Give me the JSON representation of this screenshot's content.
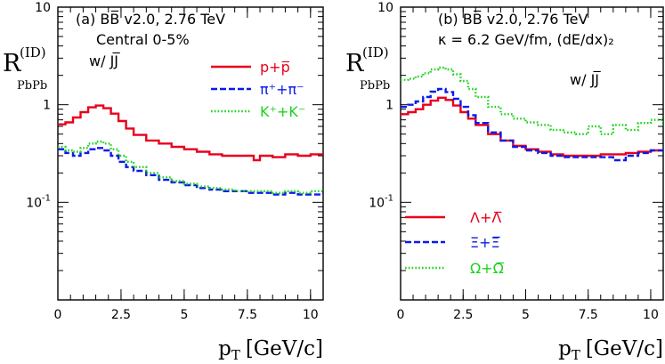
{
  "chart_data": [
    {
      "type": "line",
      "panel_label": "(a)",
      "model_line": "BB̅ v2.0, 2.76 TeV",
      "condition_lines": [
        "Central 0-5%",
        "w/ JJ̅"
      ],
      "xlabel": "p",
      "xlabel_sub": "T",
      "xlabel_unit": "[GeV/c]",
      "ylabel": "R",
      "ylabel_sup": "(ID)",
      "ylabel_sub": "PbPb",
      "xlim": [
        0,
        10.5
      ],
      "ylim": [
        0.01,
        10
      ],
      "yscale": "log",
      "x_ticks": [
        "0",
        "2.5",
        "5",
        "7.5",
        "10"
      ],
      "x_tick_values": [
        0,
        2.5,
        5,
        7.5,
        10
      ],
      "y_ticks": [
        {
          "value": 10,
          "base": "10",
          "exp": ""
        },
        {
          "value": 1,
          "base": "1",
          "exp": ""
        },
        {
          "value": 0.1,
          "base": "10",
          "exp": "-1"
        }
      ],
      "legend_position": "right",
      "series": [
        {
          "name": "p+p̅",
          "color": "#e8001c",
          "style": "solid",
          "x": [
            0,
            0.3,
            0.6,
            0.9,
            1.2,
            1.5,
            1.8,
            2.1,
            2.4,
            2.7,
            3.0,
            3.5,
            4.0,
            4.5,
            5.0,
            5.5,
            6.0,
            6.5,
            7.0,
            7.5,
            7.75,
            8.0,
            8.5,
            9.0,
            9.5,
            10.0,
            10.5
          ],
          "y": [
            0.63,
            0.66,
            0.74,
            0.84,
            0.94,
            0.98,
            0.92,
            0.81,
            0.68,
            0.57,
            0.49,
            0.43,
            0.4,
            0.37,
            0.35,
            0.33,
            0.31,
            0.3,
            0.3,
            0.3,
            0.27,
            0.3,
            0.29,
            0.31,
            0.3,
            0.31,
            0.31
          ]
        },
        {
          "name": "π⁺+π⁻",
          "color": "#0b1bea",
          "style": "dashed",
          "x": [
            0,
            0.3,
            0.6,
            0.9,
            1.2,
            1.5,
            1.8,
            2.1,
            2.4,
            2.7,
            3.0,
            3.5,
            4.0,
            4.5,
            5.0,
            5.5,
            6.0,
            6.5,
            7.0,
            7.5,
            8.0,
            8.5,
            9.0,
            9.5,
            10.0,
            10.5
          ],
          "y": [
            0.35,
            0.32,
            0.3,
            0.32,
            0.35,
            0.36,
            0.34,
            0.3,
            0.26,
            0.23,
            0.21,
            0.19,
            0.17,
            0.16,
            0.15,
            0.14,
            0.135,
            0.13,
            0.13,
            0.125,
            0.125,
            0.12,
            0.125,
            0.12,
            0.12,
            0.125
          ]
        },
        {
          "name": "K⁺+K⁻",
          "color": "#1dd21d",
          "style": "dotted",
          "x": [
            0,
            0.3,
            0.6,
            0.9,
            1.2,
            1.5,
            1.8,
            2.1,
            2.4,
            2.7,
            3.0,
            3.5,
            4.0,
            4.5,
            5.0,
            5.5,
            6.0,
            6.5,
            7.0,
            7.5,
            8.0,
            8.5,
            9.0,
            9.5,
            10.0,
            10.5
          ],
          "y": [
            0.37,
            0.34,
            0.33,
            0.36,
            0.4,
            0.42,
            0.4,
            0.35,
            0.3,
            0.26,
            0.23,
            0.2,
            0.18,
            0.165,
            0.155,
            0.145,
            0.14,
            0.135,
            0.13,
            0.13,
            0.13,
            0.125,
            0.13,
            0.125,
            0.13,
            0.13
          ]
        }
      ]
    },
    {
      "type": "line",
      "panel_label": "(b)",
      "model_line": "BB̅ v2.0, 2.76 TeV",
      "condition_lines": [
        "κ = 6.2 GeV/fm, (dE/dx)₂",
        "w/ JJ̅"
      ],
      "xlabel": "p",
      "xlabel_sub": "T",
      "xlabel_unit": "[GeV/c]",
      "ylabel": "R",
      "ylabel_sup": "(ID)",
      "ylabel_sub": "PbPb",
      "xlim": [
        0,
        10.5
      ],
      "ylim": [
        0.01,
        10
      ],
      "yscale": "log",
      "x_ticks": [
        "0",
        "2.5",
        "5",
        "7.5",
        "10"
      ],
      "x_tick_values": [
        0,
        2.5,
        5,
        7.5,
        10
      ],
      "y_ticks": [
        {
          "value": 10,
          "base": "10",
          "exp": ""
        },
        {
          "value": 1,
          "base": "1",
          "exp": ""
        },
        {
          "value": 0.1,
          "base": "10",
          "exp": "-1"
        }
      ],
      "legend_position": "bottom-left",
      "series": [
        {
          "name": "Λ+Λ̅",
          "color": "#e8001c",
          "style": "solid",
          "x": [
            0,
            0.3,
            0.6,
            0.9,
            1.2,
            1.5,
            1.8,
            2.1,
            2.4,
            2.7,
            3.0,
            3.5,
            4.0,
            4.5,
            5.0,
            5.5,
            6.0,
            6.5,
            7.0,
            7.5,
            8.0,
            8.5,
            9.0,
            9.5,
            10.0,
            10.5
          ],
          "y": [
            0.8,
            0.84,
            0.9,
            1.0,
            1.1,
            1.18,
            1.12,
            0.98,
            0.84,
            0.72,
            0.62,
            0.5,
            0.43,
            0.38,
            0.35,
            0.33,
            0.31,
            0.3,
            0.3,
            0.3,
            0.31,
            0.31,
            0.32,
            0.33,
            0.34,
            0.35
          ]
        },
        {
          "name": "Ξ+Ξ̅",
          "color": "#0b1bea",
          "style": "dashed",
          "x": [
            0,
            0.3,
            0.6,
            0.9,
            1.2,
            1.5,
            1.8,
            2.1,
            2.4,
            2.7,
            3.0,
            3.5,
            4.0,
            4.5,
            5.0,
            5.5,
            6.0,
            6.5,
            7.0,
            7.5,
            8.0,
            8.5,
            9.0,
            9.5,
            10.0,
            10.5
          ],
          "y": [
            0.95,
            1.0,
            1.08,
            1.2,
            1.36,
            1.45,
            1.35,
            1.15,
            0.95,
            0.78,
            0.65,
            0.52,
            0.43,
            0.37,
            0.34,
            0.32,
            0.3,
            0.29,
            0.29,
            0.29,
            0.29,
            0.27,
            0.3,
            0.32,
            0.34,
            0.35
          ]
        },
        {
          "name": "Ω+Ω̅",
          "color": "#1dd21d",
          "style": "dotted",
          "x": [
            0,
            0.3,
            0.6,
            0.9,
            1.2,
            1.5,
            1.8,
            2.1,
            2.4,
            2.7,
            3.0,
            3.5,
            4.0,
            4.5,
            5.0,
            5.5,
            6.0,
            6.5,
            7.0,
            7.5,
            8.0,
            8.5,
            9.0,
            9.5,
            10.0,
            10.5
          ],
          "y": [
            1.8,
            1.85,
            1.95,
            2.1,
            2.3,
            2.4,
            2.3,
            2.05,
            1.75,
            1.45,
            1.2,
            0.95,
            0.8,
            0.72,
            0.66,
            0.62,
            0.55,
            0.52,
            0.5,
            0.6,
            0.5,
            0.62,
            0.55,
            0.65,
            0.7,
            0.6
          ]
        }
      ]
    }
  ]
}
